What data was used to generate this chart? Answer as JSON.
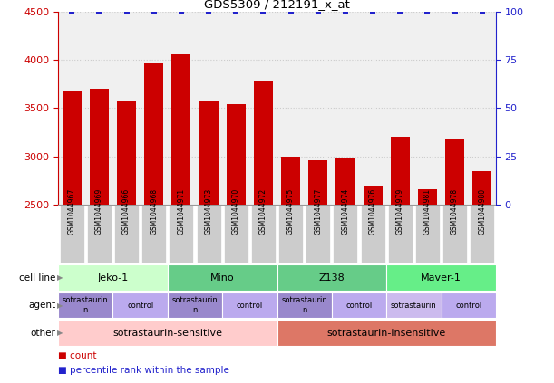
{
  "title": "GDS5309 / 212191_x_at",
  "samples": [
    "GSM1044967",
    "GSM1044969",
    "GSM1044966",
    "GSM1044968",
    "GSM1044971",
    "GSM1044973",
    "GSM1044970",
    "GSM1044972",
    "GSM1044975",
    "GSM1044977",
    "GSM1044974",
    "GSM1044976",
    "GSM1044979",
    "GSM1044981",
    "GSM1044978",
    "GSM1044980"
  ],
  "counts": [
    3680,
    3700,
    3580,
    3960,
    4060,
    3580,
    3540,
    3780,
    3000,
    2960,
    2980,
    2700,
    3200,
    2660,
    3180,
    2850
  ],
  "percentiles": [
    100,
    100,
    100,
    100,
    100,
    100,
    100,
    100,
    100,
    100,
    100,
    100,
    100,
    100,
    100,
    100
  ],
  "bar_color": "#cc0000",
  "dot_color": "#2222cc",
  "ylim_left": [
    2500,
    4500
  ],
  "ylim_right": [
    0,
    100
  ],
  "yticks_left": [
    2500,
    3000,
    3500,
    4000,
    4500
  ],
  "yticks_right": [
    0,
    25,
    50,
    75,
    100
  ],
  "bg_color": "#f0f0f0",
  "sample_box_color": "#cccccc",
  "cell_line_row": {
    "label": "cell line",
    "groups": [
      {
        "text": "Jeko-1",
        "start": 0,
        "end": 4,
        "color": "#ccffcc"
      },
      {
        "text": "Mino",
        "start": 4,
        "end": 8,
        "color": "#66cc88"
      },
      {
        "text": "Z138",
        "start": 8,
        "end": 12,
        "color": "#66cc88"
      },
      {
        "text": "Maver-1",
        "start": 12,
        "end": 16,
        "color": "#66ee88"
      }
    ]
  },
  "agent_row": {
    "label": "agent",
    "groups": [
      {
        "text": "sotrastaurin\nn",
        "start": 0,
        "end": 2,
        "color": "#9988cc"
      },
      {
        "text": "control",
        "start": 2,
        "end": 4,
        "color": "#bbaaee"
      },
      {
        "text": "sotrastaurin\nn",
        "start": 4,
        "end": 6,
        "color": "#9988cc"
      },
      {
        "text": "control",
        "start": 6,
        "end": 8,
        "color": "#bbaaee"
      },
      {
        "text": "sotrastaurin\nn",
        "start": 8,
        "end": 10,
        "color": "#9988cc"
      },
      {
        "text": "control",
        "start": 10,
        "end": 12,
        "color": "#bbaaee"
      },
      {
        "text": "sotrastaurin",
        "start": 12,
        "end": 14,
        "color": "#ccbbee"
      },
      {
        "text": "control",
        "start": 14,
        "end": 16,
        "color": "#bbaaee"
      }
    ]
  },
  "other_row": {
    "label": "other",
    "groups": [
      {
        "text": "sotrastaurin-sensitive",
        "start": 0,
        "end": 8,
        "color": "#ffcccc"
      },
      {
        "text": "sotrastaurin-insensitive",
        "start": 8,
        "end": 16,
        "color": "#dd7766"
      }
    ]
  },
  "legend_count_color": "#cc0000",
  "legend_dot_color": "#2222cc",
  "grid_color": "#cccccc",
  "tick_color_left": "#cc0000",
  "tick_color_right": "#2222cc",
  "label_arrow_color": "#888888"
}
